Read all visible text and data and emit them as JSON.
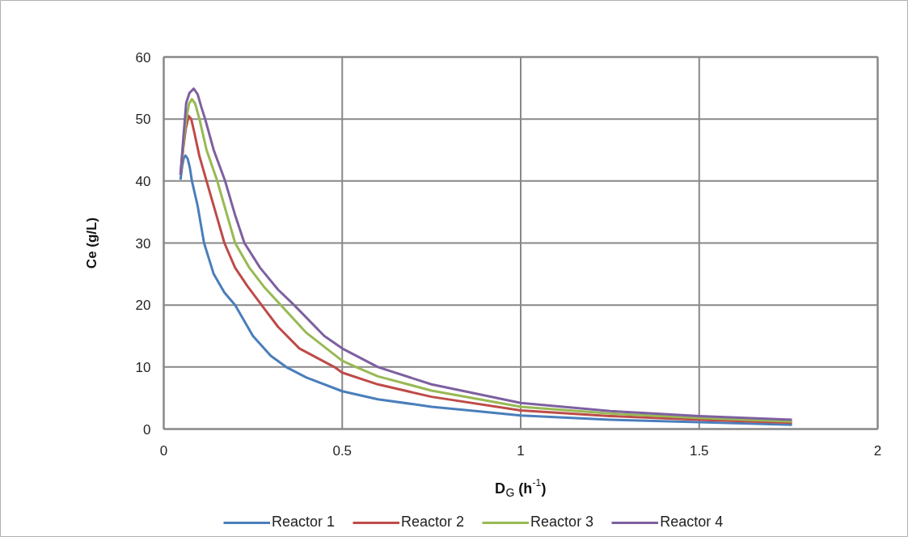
{
  "chart_data": {
    "type": "line",
    "xlabel": "D$_{G}$ (h$^{-1}$)",
    "ylabel": "Ce (g/L)",
    "xlim": [
      0,
      2
    ],
    "xticks": [
      0,
      0.5,
      1,
      1.5,
      2
    ],
    "ylim": [
      0,
      60
    ],
    "yticks": [
      0,
      10,
      20,
      30,
      40,
      50,
      60
    ],
    "grid": true,
    "legend": "bottom",
    "marker": "none",
    "line_style": "solid",
    "series": [
      {
        "name": "Reactor 1",
        "color": "#4a7ebb",
        "x": [
          0.047,
          0.052,
          0.056,
          0.061,
          0.067,
          0.073,
          0.079,
          0.095,
          0.113,
          0.14,
          0.17,
          0.2,
          0.25,
          0.3,
          0.343,
          0.4,
          0.5,
          0.6,
          0.75,
          1,
          1.25,
          1.5,
          1.76
        ],
        "values": [
          40.2,
          42.5,
          43.7,
          44.1,
          43.6,
          42.2,
          40,
          36,
          30,
          25,
          22,
          20,
          15,
          11.8,
          10,
          8.3,
          6.1,
          4.8,
          3.6,
          2.2,
          1.5,
          1.1,
          0.7
        ]
      },
      {
        "name": "Reactor 2",
        "color": "#be4b48",
        "x": [
          0.047,
          0.055,
          0.062,
          0.07,
          0.077,
          0.085,
          0.1,
          0.12,
          0.145,
          0.17,
          0.2,
          0.235,
          0.274,
          0.32,
          0.38,
          0.478,
          0.5,
          0.6,
          0.75,
          1,
          1.25,
          1.5,
          1.76
        ],
        "values": [
          41,
          45.5,
          48.5,
          50.5,
          50,
          48,
          44,
          40,
          35,
          30,
          26,
          23,
          20,
          16.5,
          13,
          10,
          9.1,
          7.2,
          5.2,
          3,
          2.1,
          1.5,
          1.0
        ]
      },
      {
        "name": "Reactor 3",
        "color": "#98b954",
        "x": [
          0.047,
          0.055,
          0.063,
          0.071,
          0.079,
          0.088,
          0.1,
          0.12,
          0.15,
          0.175,
          0.2,
          0.24,
          0.28,
          0.328,
          0.4,
          0.5,
          0.539,
          0.6,
          0.75,
          1,
          1.25,
          1.5,
          1.76
        ],
        "values": [
          41,
          46,
          50,
          52.5,
          53.2,
          52.5,
          50,
          45,
          40,
          35,
          30,
          26,
          23,
          20,
          15.5,
          11,
          10,
          8.5,
          6.2,
          3.6,
          2.5,
          1.8,
          1.2
        ]
      },
      {
        "name": "Reactor 4",
        "color": "#7d60a0",
        "x": [
          0.047,
          0.055,
          0.063,
          0.072,
          0.084,
          0.095,
          0.105,
          0.116,
          0.14,
          0.172,
          0.2,
          0.226,
          0.27,
          0.32,
          0.365,
          0.45,
          0.5,
          0.6,
          0.75,
          1,
          1.25,
          1.5,
          1.76
        ],
        "values": [
          41,
          47,
          52.6,
          54.2,
          54.9,
          54,
          52,
          50,
          45,
          40,
          34.5,
          30,
          26,
          22.5,
          20,
          15,
          13,
          10,
          7.2,
          4.2,
          2.9,
          2.1,
          1.5
        ]
      }
    ]
  }
}
